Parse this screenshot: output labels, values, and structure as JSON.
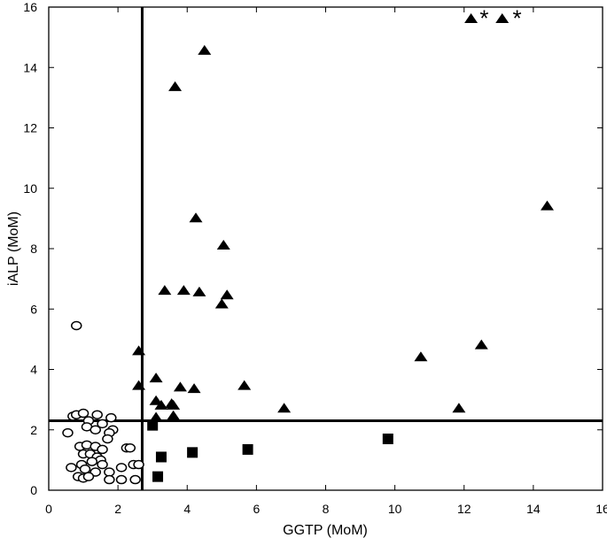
{
  "chart_data": {
    "type": "scatter",
    "xlabel": "GGTP (MoM)",
    "ylabel": "iALP (MoM)",
    "xlim": [
      0,
      16
    ],
    "ylim": [
      0,
      16
    ],
    "x_ticks": [
      "0",
      "2",
      "4",
      "6",
      "8",
      "10",
      "12",
      "14",
      "16"
    ],
    "y_ticks": [
      "0",
      "2",
      "4",
      "6",
      "8",
      "10",
      "12",
      "14",
      "16"
    ],
    "grid": false,
    "legend": "none",
    "reference_lines": [
      {
        "orientation": "vertical",
        "x": 2.7
      },
      {
        "orientation": "horizontal",
        "y": 2.3
      }
    ],
    "series": [
      {
        "marker": "open-circle",
        "points": [
          [
            0.8,
            5.45
          ],
          [
            0.7,
            2.45
          ],
          [
            0.8,
            2.5
          ],
          [
            1.0,
            2.55
          ],
          [
            1.4,
            2.5
          ],
          [
            1.8,
            2.4
          ],
          [
            1.15,
            2.3
          ],
          [
            0.55,
            1.9
          ],
          [
            1.1,
            2.1
          ],
          [
            1.35,
            2.0
          ],
          [
            1.55,
            2.2
          ],
          [
            1.85,
            2.0
          ],
          [
            1.75,
            1.9
          ],
          [
            0.9,
            1.45
          ],
          [
            1.1,
            1.5
          ],
          [
            1.35,
            1.45
          ],
          [
            1.55,
            1.35
          ],
          [
            1.7,
            1.7
          ],
          [
            1.0,
            1.2
          ],
          [
            1.2,
            1.2
          ],
          [
            1.4,
            1.1
          ],
          [
            1.5,
            1.0
          ],
          [
            2.25,
            1.4
          ],
          [
            2.35,
            1.4
          ],
          [
            0.95,
            0.85
          ],
          [
            1.25,
            0.95
          ],
          [
            1.55,
            0.85
          ],
          [
            2.45,
            0.85
          ],
          [
            2.6,
            0.85
          ],
          [
            0.65,
            0.75
          ],
          [
            1.05,
            0.7
          ],
          [
            1.35,
            0.6
          ],
          [
            1.75,
            0.6
          ],
          [
            2.1,
            0.75
          ],
          [
            0.85,
            0.45
          ],
          [
            1.0,
            0.4
          ],
          [
            1.15,
            0.45
          ],
          [
            1.75,
            0.35
          ],
          [
            2.1,
            0.35
          ],
          [
            2.5,
            0.35
          ]
        ]
      },
      {
        "marker": "filled-triangle",
        "points": [
          [
            12.2,
            15.6
          ],
          [
            13.1,
            15.6
          ],
          [
            4.5,
            14.55
          ],
          [
            3.65,
            13.35
          ],
          [
            14.4,
            9.4
          ],
          [
            4.25,
            9.0
          ],
          [
            5.05,
            8.1
          ],
          [
            3.35,
            6.6
          ],
          [
            3.9,
            6.6
          ],
          [
            4.35,
            6.55
          ],
          [
            5.15,
            6.45
          ],
          [
            5.0,
            6.15
          ],
          [
            12.5,
            4.8
          ],
          [
            2.6,
            4.6
          ],
          [
            10.75,
            4.4
          ],
          [
            3.1,
            3.7
          ],
          [
            2.6,
            3.45
          ],
          [
            3.8,
            3.4
          ],
          [
            4.2,
            3.35
          ],
          [
            5.65,
            3.45
          ],
          [
            3.1,
            2.95
          ],
          [
            3.25,
            2.8
          ],
          [
            3.55,
            2.85
          ],
          [
            3.6,
            2.8
          ],
          [
            6.8,
            2.7
          ],
          [
            11.85,
            2.7
          ],
          [
            3.1,
            2.4
          ],
          [
            3.6,
            2.45
          ]
        ]
      },
      {
        "marker": "filled-square",
        "points": [
          [
            3.0,
            2.15
          ],
          [
            9.8,
            1.7
          ],
          [
            5.75,
            1.35
          ],
          [
            4.15,
            1.25
          ],
          [
            3.25,
            1.1
          ],
          [
            3.15,
            0.45
          ]
        ]
      }
    ],
    "annotations": [
      {
        "text": "*",
        "x": 12.4,
        "y": 15.6
      },
      {
        "text": "*",
        "x": 13.35,
        "y": 15.6
      }
    ]
  }
}
